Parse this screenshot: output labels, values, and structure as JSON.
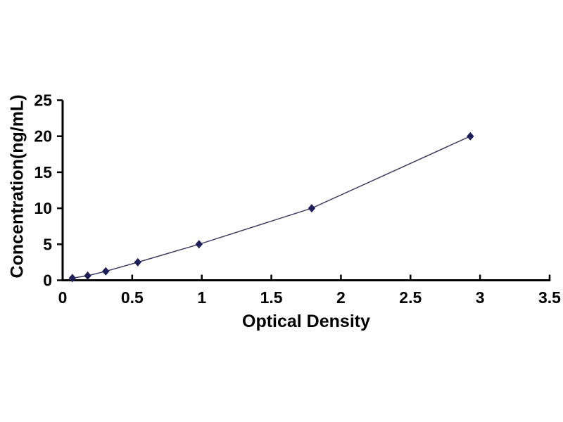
{
  "page": {
    "background": "#ffffff"
  },
  "chart_data": {
    "type": "line",
    "title": "",
    "xlabel": "Optical Density",
    "ylabel": "Concentration(ng/mL)",
    "x": [
      0.07,
      0.18,
      0.31,
      0.54,
      0.98,
      1.79,
      2.93
    ],
    "y": [
      0.31,
      0.63,
      1.25,
      2.5,
      5,
      10,
      20
    ],
    "xlim": [
      0,
      3.5
    ],
    "ylim": [
      0,
      25
    ],
    "xticks": [
      0,
      0.5,
      1,
      1.5,
      2,
      2.5,
      3,
      3.5
    ],
    "xtick_labels": [
      "0",
      "0.5",
      "1",
      "1.5",
      "2",
      "2.5",
      "3",
      "3.5"
    ],
    "yticks": [
      0,
      5,
      10,
      15,
      20,
      25
    ],
    "ytick_labels": [
      "0",
      "5",
      "10",
      "15",
      "20",
      "25"
    ],
    "grid": false,
    "legend_position": "none",
    "marker_shape": "diamond",
    "colors": {
      "marker": "#1e1e5a",
      "line": "#3f3f63",
      "axis": "#000000",
      "text": "#000000",
      "background": "#ffffff"
    }
  }
}
